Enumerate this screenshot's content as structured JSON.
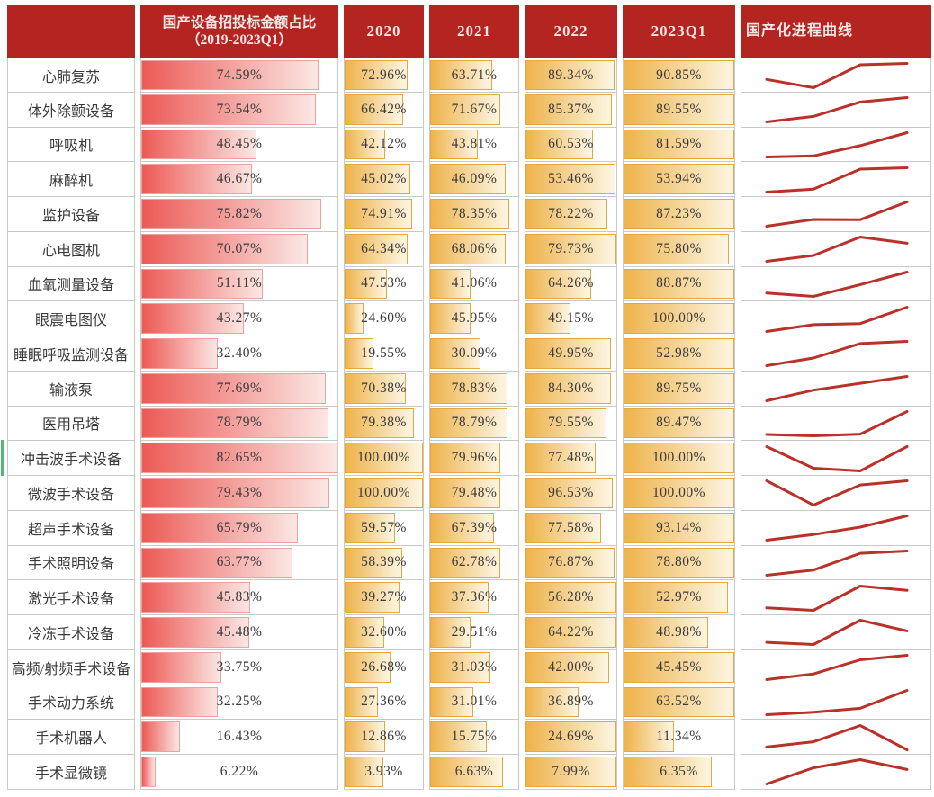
{
  "table": {
    "columns": {
      "row_header": "",
      "overall_title_line1": "国产设备招投标金额占比",
      "overall_title_line2": "（2019-2023Q1）",
      "years": [
        "2020",
        "2021",
        "2022",
        "2023Q1"
      ],
      "sparkline_title": "国产化进程曲线"
    },
    "rows": [
      {
        "label": "心肺复苏",
        "overall": 74.59,
        "values": [
          72.96,
          63.71,
          89.34,
          90.85
        ]
      },
      {
        "label": "体外除颤设备",
        "overall": 73.54,
        "values": [
          66.42,
          71.67,
          85.37,
          89.55
        ]
      },
      {
        "label": "呼吸机",
        "overall": 48.45,
        "values": [
          42.12,
          43.81,
          60.53,
          81.59
        ]
      },
      {
        "label": "麻醉机",
        "overall": 46.67,
        "values": [
          45.02,
          46.09,
          53.46,
          53.94
        ]
      },
      {
        "label": "监护设备",
        "overall": 75.82,
        "values": [
          74.91,
          78.35,
          78.22,
          87.23
        ]
      },
      {
        "label": "心电图机",
        "overall": 70.07,
        "values": [
          64.34,
          68.06,
          79.73,
          75.8
        ]
      },
      {
        "label": "血氧测量设备",
        "overall": 51.11,
        "values": [
          47.53,
          41.06,
          64.26,
          88.87
        ]
      },
      {
        "label": "眼震电图仪",
        "overall": 43.27,
        "values": [
          24.6,
          45.95,
          49.15,
          100.0
        ]
      },
      {
        "label": "睡眠呼吸监测设备",
        "overall": 32.4,
        "values": [
          19.55,
          30.09,
          49.95,
          52.98
        ]
      },
      {
        "label": "输液泵",
        "overall": 77.69,
        "values": [
          70.38,
          78.83,
          84.3,
          89.75
        ]
      },
      {
        "label": "医用吊塔",
        "overall": 78.79,
        "values": [
          79.38,
          78.79,
          79.55,
          89.47
        ]
      },
      {
        "label": "冲击波手术设备",
        "overall": 82.65,
        "values": [
          100.0,
          79.96,
          77.48,
          100.0
        ],
        "marker": true
      },
      {
        "label": "微波手术设备",
        "overall": 79.43,
        "values": [
          100.0,
          79.48,
          96.53,
          100.0
        ]
      },
      {
        "label": "超声手术设备",
        "overall": 65.79,
        "values": [
          59.57,
          67.39,
          77.58,
          93.14
        ]
      },
      {
        "label": "手术照明设备",
        "overall": 63.77,
        "values": [
          58.39,
          62.78,
          76.87,
          78.8
        ]
      },
      {
        "label": "激光手术设备",
        "overall": 45.83,
        "values": [
          39.27,
          37.36,
          56.28,
          52.97
        ]
      },
      {
        "label": "冷冻手术设备",
        "overall": 45.48,
        "values": [
          32.6,
          29.51,
          64.22,
          48.98
        ]
      },
      {
        "label": "高频/射频手术设备",
        "overall": 33.75,
        "values": [
          26.68,
          31.03,
          42.0,
          45.45
        ]
      },
      {
        "label": "手术动力系统",
        "overall": 32.25,
        "values": [
          27.36,
          31.01,
          36.89,
          63.52
        ]
      },
      {
        "label": "手术机器人",
        "overall": 16.43,
        "values": [
          12.86,
          15.75,
          24.69,
          11.34
        ]
      },
      {
        "label": "手术显微镜",
        "overall": 6.22,
        "values": [
          3.93,
          6.63,
          7.99,
          6.35
        ]
      }
    ]
  },
  "chart_data": {
    "type": "table",
    "title": "国产设备招投标金额占比",
    "columns": [
      "国产设备招投标金额占比（2019-2023Q1）",
      "2020",
      "2021",
      "2022",
      "2023Q1",
      "国产化进程曲线"
    ],
    "categories": [
      "心肺复苏",
      "体外除颤设备",
      "呼吸机",
      "麻醉机",
      "监护设备",
      "心电图机",
      "血氧测量设备",
      "眼震电图仪",
      "睡眠呼吸监测设备",
      "输液泵",
      "医用吊塔",
      "冲击波手术设备",
      "微波手术设备",
      "超声手术设备",
      "手术照明设备",
      "激光手术设备",
      "冷冻手术设备",
      "高频/射频手术设备",
      "手术动力系统",
      "手术机器人",
      "手术显微镜"
    ],
    "series": [
      {
        "name": "国产设备招投标金额占比（2019-2023Q1）",
        "values": [
          74.59,
          73.54,
          48.45,
          46.67,
          75.82,
          70.07,
          51.11,
          43.27,
          32.4,
          77.69,
          78.79,
          82.65,
          79.43,
          65.79,
          63.77,
          45.83,
          45.48,
          33.75,
          32.25,
          16.43,
          6.22
        ]
      },
      {
        "name": "2020",
        "values": [
          72.96,
          66.42,
          42.12,
          45.02,
          74.91,
          64.34,
          47.53,
          24.6,
          19.55,
          70.38,
          79.38,
          100.0,
          100.0,
          59.57,
          58.39,
          39.27,
          32.6,
          26.68,
          27.36,
          12.86,
          3.93
        ]
      },
      {
        "name": "2021",
        "values": [
          63.71,
          71.67,
          43.81,
          46.09,
          78.35,
          68.06,
          41.06,
          45.95,
          30.09,
          78.83,
          78.79,
          79.96,
          79.48,
          67.39,
          62.78,
          37.36,
          29.51,
          31.03,
          31.01,
          15.75,
          6.63
        ]
      },
      {
        "name": "2022",
        "values": [
          89.34,
          85.37,
          60.53,
          53.46,
          78.22,
          79.73,
          64.26,
          49.15,
          49.95,
          84.3,
          79.55,
          77.48,
          96.53,
          77.58,
          76.87,
          56.28,
          64.22,
          42.0,
          36.89,
          24.69,
          7.99
        ]
      },
      {
        "name": "2023Q1",
        "values": [
          90.85,
          89.55,
          81.59,
          53.94,
          87.23,
          75.8,
          88.87,
          100.0,
          52.98,
          89.75,
          89.47,
          100.0,
          100.0,
          93.14,
          78.8,
          52.97,
          48.98,
          45.45,
          63.52,
          11.34,
          6.35
        ]
      }
    ],
    "unit": "%",
    "value_range": [
      0,
      100
    ],
    "layout_hints": {
      "overall_column_databar": "width = value / max(overall values), red gradient",
      "year_column_databars": "width = value / max(row year values), orange gradient",
      "sparkline_column": "4-point line of 2020..2023Q1 values, min-max normalized per row",
      "grid": "light gray cell borders with white spacer gaps between columns"
    }
  },
  "colors": {
    "header_bg": "#b42421",
    "header_text": "#f5e7e5",
    "red_bar_start": "#ec5a56",
    "red_bar_end": "#fbe7e4",
    "red_bar_border": "#efa29d",
    "orange_bar_start": "#eeb34b",
    "orange_bar_end": "#fdf6e3",
    "orange_bar_border": "#e5a83e",
    "sparkline": "#b93129",
    "marker_green": "#57b47c",
    "grid": "#c9c9c9",
    "text": "#3a3a3a"
  }
}
